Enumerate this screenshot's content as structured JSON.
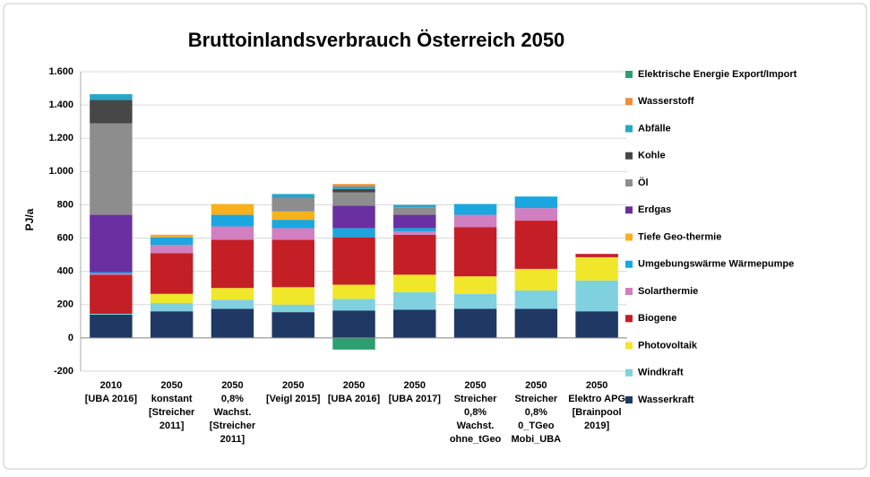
{
  "chart_data": {
    "type": "stacked_bar",
    "title": "Bruttoinlandsverbrauch Österreich 2050",
    "y_label": "PJ/a",
    "categories": [
      [
        "2010",
        "[UBA 2016]"
      ],
      [
        "2050",
        "konstant",
        "[Streicher",
        "2011]"
      ],
      [
        "2050",
        "0,8%",
        "Wachst.",
        "[Streicher",
        "2011]"
      ],
      [
        "2050",
        "[Veigl 2015]"
      ],
      [
        "2050",
        "[UBA 2016]"
      ],
      [
        "2050",
        "[UBA 2017]"
      ],
      [
        "2050",
        "Streicher",
        "0,8%",
        "Wachst.",
        "ohne_tGeo"
      ],
      [
        "2050",
        "Streicher",
        "0,8%",
        "0_TGeo",
        "Mobi_UBA"
      ],
      [
        "2050",
        "Elektro APG",
        "[Brainpool",
        "2019]"
      ]
    ],
    "ylim": [
      -200,
      1600
    ],
    "yticks": [
      -200,
      0,
      200,
      400,
      600,
      800,
      {
        "value": 1000,
        "label": "1.000"
      },
      {
        "value": 1200,
        "label": "1.200"
      },
      {
        "value": 1400,
        "label": "1.400"
      },
      {
        "value": 1600,
        "label": "1.600"
      }
    ],
    "grid": true,
    "legend_position": "right",
    "series": [
      {
        "name": "Wasserkraft",
        "color": "#1f3864",
        "values": [
          140,
          160,
          175,
          155,
          165,
          170,
          175,
          175,
          160
        ]
      },
      {
        "name": "Windkraft",
        "color": "#7fd1e0",
        "values": [
          5,
          50,
          55,
          45,
          70,
          105,
          90,
          110,
          185
        ]
      },
      {
        "name": "Photovoltaik",
        "color": "#f0e62a",
        "values": [
          0,
          55,
          70,
          105,
          85,
          105,
          105,
          130,
          140
        ]
      },
      {
        "name": "Biogene",
        "color": "#c41f26",
        "values": [
          235,
          245,
          290,
          285,
          285,
          240,
          295,
          290,
          20
        ]
      },
      {
        "name": "Solarthermie",
        "color": "#d07fc0",
        "values": [
          5,
          50,
          80,
          70,
          0,
          20,
          75,
          75,
          0
        ]
      },
      {
        "name": "Umgebungswärme Wärmepumpe",
        "color": "#1ba6df",
        "values": [
          10,
          45,
          70,
          50,
          55,
          20,
          65,
          70,
          0
        ]
      },
      {
        "name": "Tiefe Geo-thermie",
        "color": "#f8b11a",
        "values": [
          0,
          10,
          65,
          50,
          0,
          0,
          0,
          0,
          0
        ]
      },
      {
        "name": "Erdgas",
        "color": "#6a2fa0",
        "values": [
          345,
          0,
          0,
          0,
          135,
          80,
          0,
          0,
          0
        ]
      },
      {
        "name": "Öl",
        "color": "#8d8d8d",
        "values": [
          550,
          0,
          0,
          80,
          80,
          45,
          0,
          0,
          0
        ]
      },
      {
        "name": "Kohle",
        "color": "#474747",
        "values": [
          140,
          0,
          0,
          0,
          20,
          0,
          0,
          0,
          0
        ]
      },
      {
        "name": "Abfälle",
        "color": "#2aa5c8",
        "values": [
          35,
          0,
          0,
          25,
          15,
          15,
          0,
          0,
          0
        ]
      },
      {
        "name": "Wasserstoff",
        "color": "#f28c3c",
        "values": [
          0,
          5,
          0,
          0,
          15,
          0,
          0,
          0,
          0
        ]
      },
      {
        "name": "Elektrische Energie Export/Import",
        "color": "#2e9e6e",
        "values": [
          0,
          0,
          0,
          0,
          -70,
          0,
          0,
          0,
          0
        ]
      }
    ]
  }
}
